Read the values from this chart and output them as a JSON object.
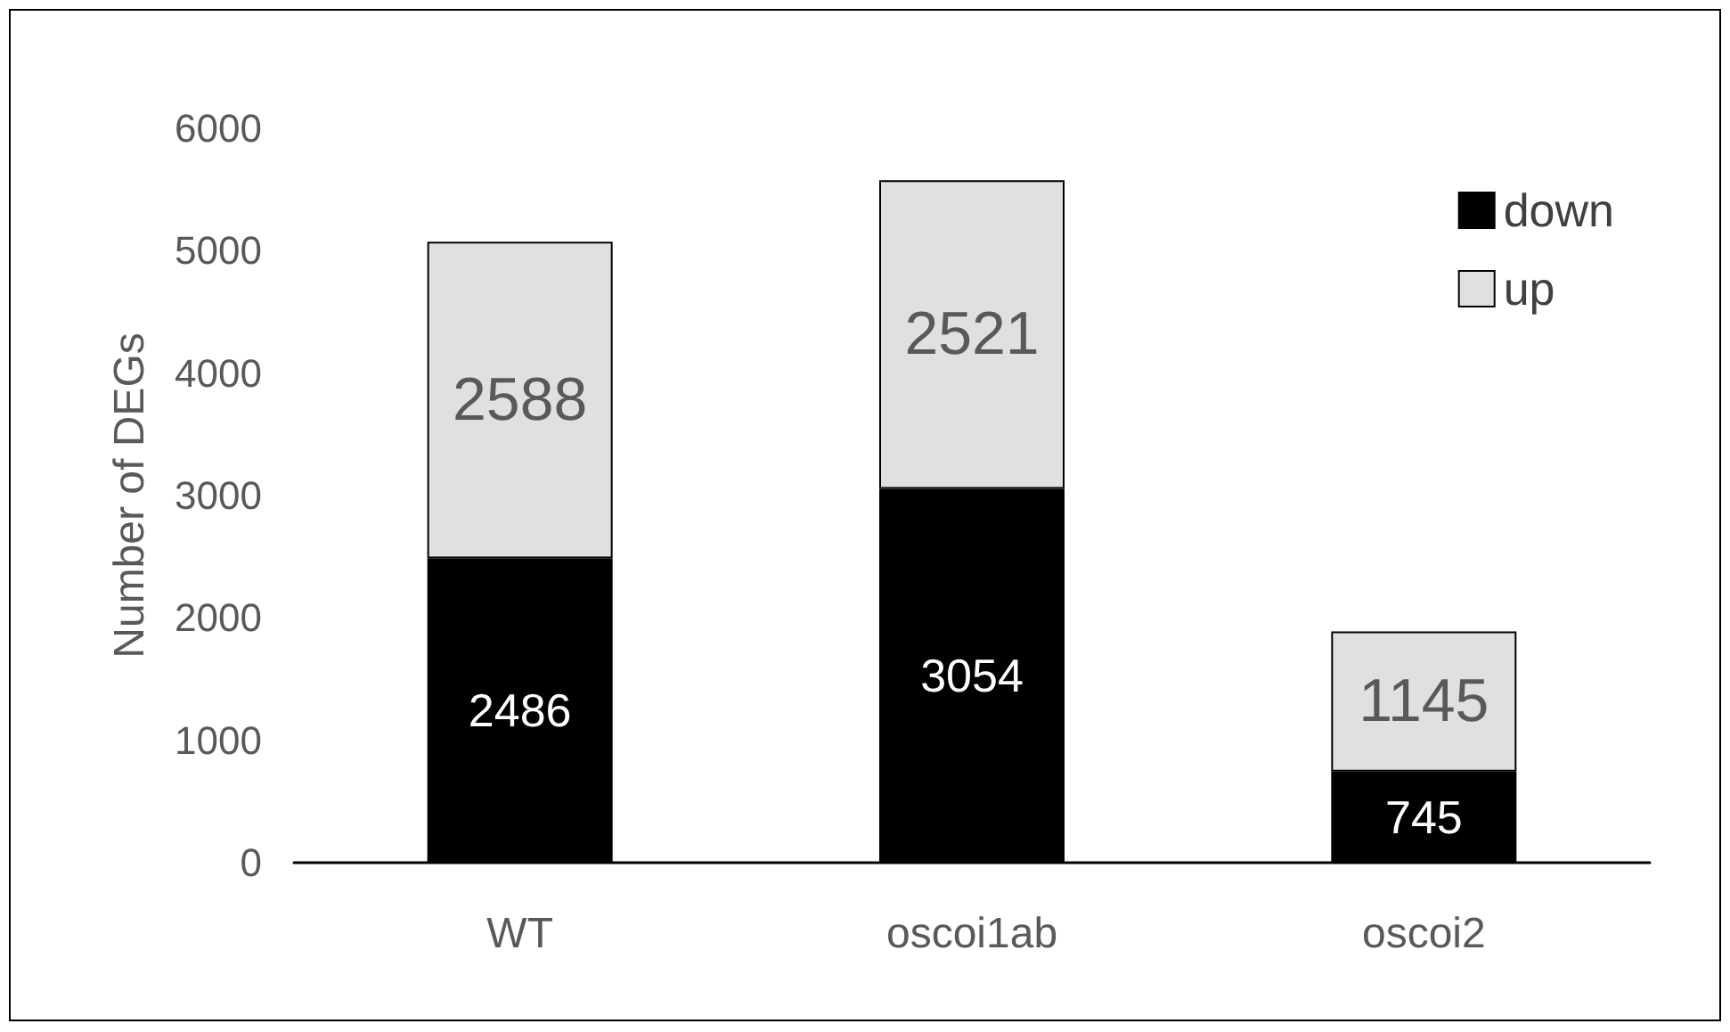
{
  "chart_data": {
    "type": "bar",
    "ylabel": "Number of DEGs",
    "categories": [
      "WT",
      "oscoi1ab",
      "oscoi2"
    ],
    "series": [
      {
        "name": "down",
        "color": "#000000",
        "values": [
          2486,
          3054,
          745
        ]
      },
      {
        "name": "up",
        "color": "#e0e0e0",
        "values": [
          2588,
          2521,
          1145
        ]
      }
    ],
    "stacked": true,
    "ylim": [
      0,
      6000
    ],
    "yticks": [
      0,
      1000,
      2000,
      3000,
      4000,
      5000,
      6000
    ],
    "grid": false,
    "legend": "top right",
    "data_labels": true
  }
}
